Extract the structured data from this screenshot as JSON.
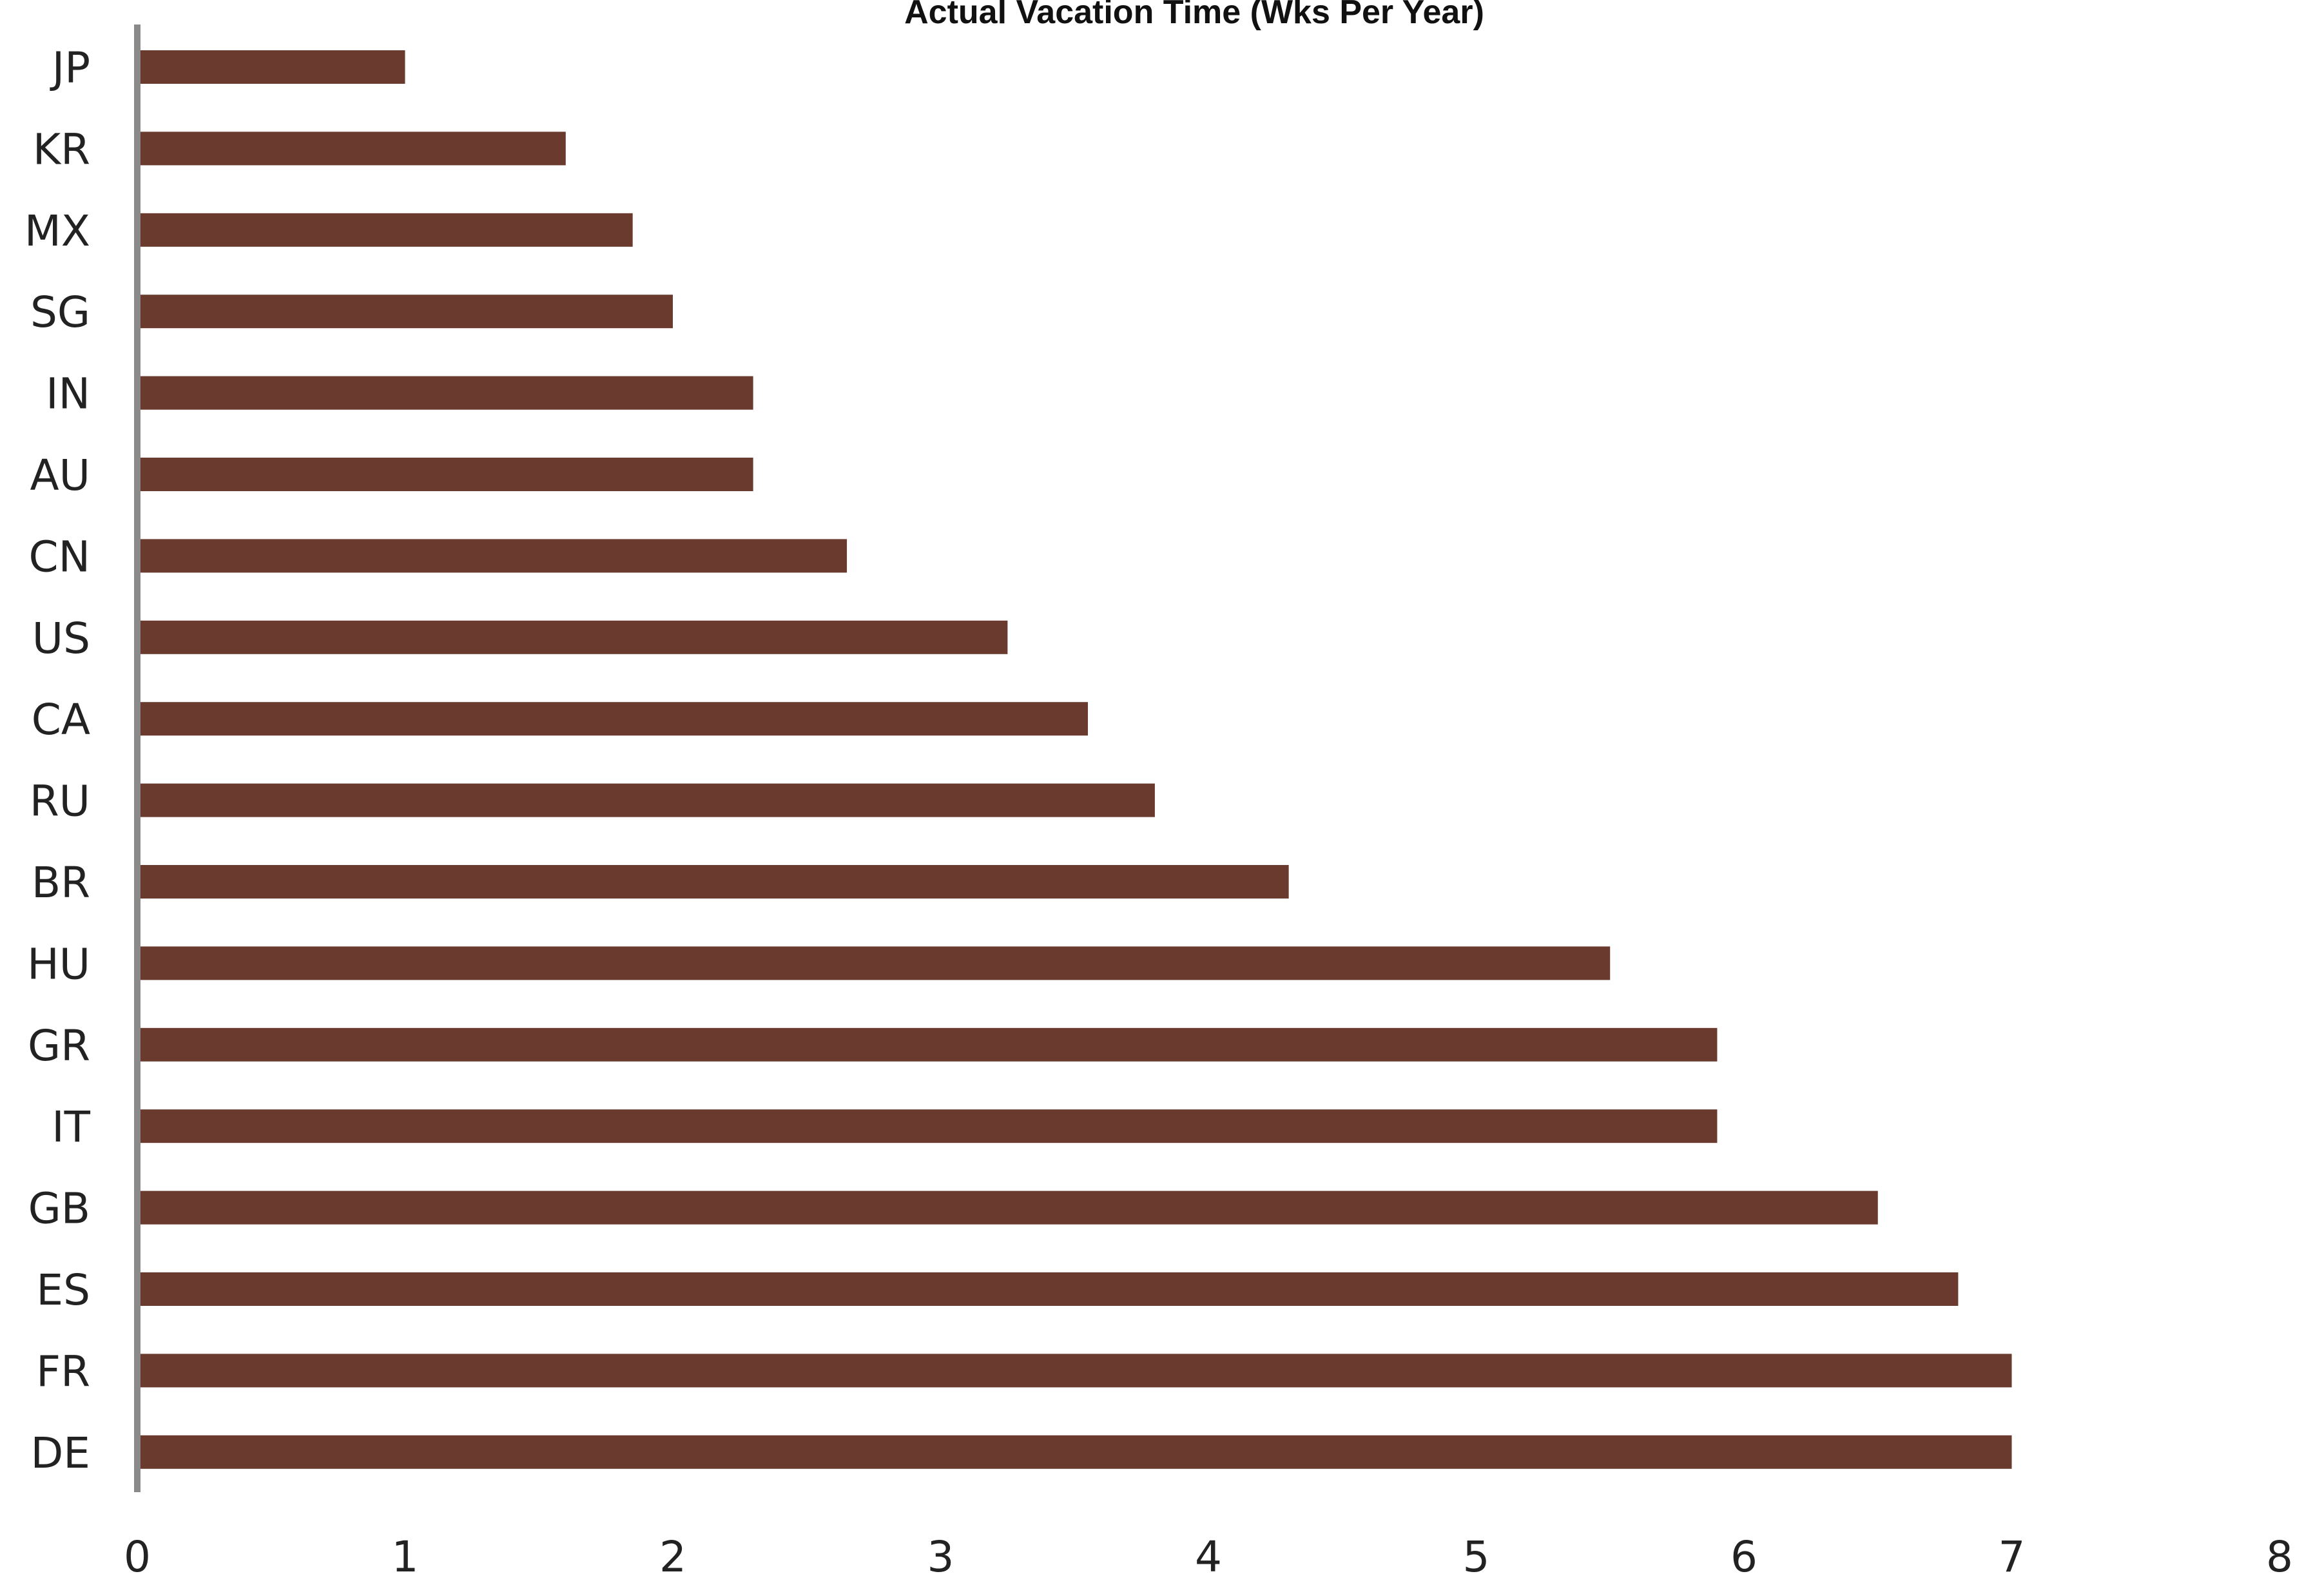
{
  "chart_data": {
    "type": "bar",
    "orientation": "horizontal",
    "title": "Actual Vacation Time (Wks Per Year)",
    "categories": [
      "JP",
      "KR",
      "MX",
      "SG",
      "IN",
      "AU",
      "CN",
      "US",
      "CA",
      "RU",
      "BR",
      "HU",
      "GR",
      "IT",
      "GB",
      "ES",
      "FR",
      "DE"
    ],
    "values": [
      1.0,
      1.6,
      1.85,
      2.0,
      2.3,
      2.3,
      2.65,
      3.25,
      3.55,
      3.8,
      4.3,
      5.5,
      5.9,
      5.9,
      6.5,
      6.8,
      7.0,
      7.0
    ],
    "xlim": [
      0,
      8
    ],
    "xticks": [
      "0",
      "1",
      "2",
      "3",
      "4",
      "5",
      "6",
      "7",
      "8"
    ],
    "xlabel": "",
    "ylabel": "",
    "grid": false,
    "legend": "none",
    "colors": {
      "bar": "#6b3a2e",
      "axis": "#8a8a8a",
      "text": "#222222"
    }
  }
}
